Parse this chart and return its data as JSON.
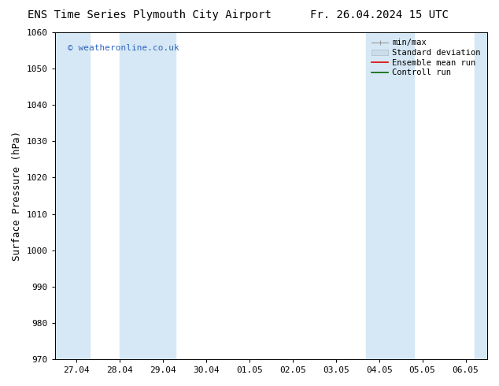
{
  "title_left": "ENS Time Series Plymouth City Airport",
  "title_right": "Fr. 26.04.2024 15 UTC",
  "ylabel": "Surface Pressure (hPa)",
  "ylim": [
    970,
    1060
  ],
  "yticks": [
    970,
    980,
    990,
    1000,
    1010,
    1020,
    1030,
    1040,
    1050,
    1060
  ],
  "x_tick_labels": [
    "27.04",
    "28.04",
    "29.04",
    "30.04",
    "01.05",
    "02.05",
    "03.05",
    "04.05",
    "05.05",
    "06.05"
  ],
  "x_tick_positions": [
    0,
    1,
    2,
    3,
    4,
    5,
    6,
    7,
    8,
    9
  ],
  "xlim": [
    -0.5,
    9.5
  ],
  "shaded_bands": [
    {
      "x_start": -0.5,
      "x_end": 0.3,
      "color": "#d6e8f5"
    },
    {
      "x_start": 1.0,
      "x_end": 2.3,
      "color": "#d6e8f5"
    },
    {
      "x_start": 6.7,
      "x_end": 7.8,
      "color": "#d6e8f5"
    },
    {
      "x_start": 9.2,
      "x_end": 9.5,
      "color": "#d6e8f5"
    }
  ],
  "watermark_text": "© weatheronline.co.uk",
  "watermark_color": "#3366bb",
  "legend_labels": [
    "min/max",
    "Standard deviation",
    "Ensemble mean run",
    "Controll run"
  ],
  "legend_colors": [
    "#aaaaaa",
    "#bbccdd",
    "#ff0000",
    "#008800"
  ],
  "background_color": "#ffffff",
  "font_color": "#000000",
  "title_fontsize": 10,
  "tick_fontsize": 8,
  "ylabel_fontsize": 9,
  "legend_fontsize": 7.5
}
